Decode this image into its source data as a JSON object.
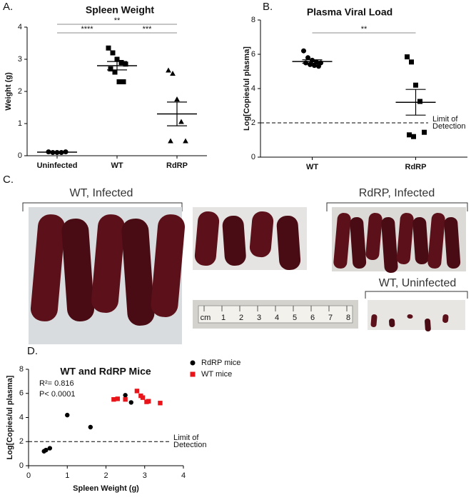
{
  "chart_data": [
    {
      "type": "dot",
      "panel_label": "A.",
      "title": "Spleen Weight",
      "y_label": "Weight (g)",
      "ylim": [
        0,
        4
      ],
      "yticks": [
        0,
        1,
        2,
        3,
        4
      ],
      "groups": [
        {
          "name": "Uninfected",
          "marker": "circle",
          "values": [
            0.12,
            0.1,
            0.1,
            0.1,
            0.12
          ],
          "mean": 0.11,
          "error": 0.01
        },
        {
          "name": "WT",
          "marker": "square",
          "values": [
            3.35,
            3.2,
            3.0,
            2.9,
            2.85,
            2.7,
            2.6,
            2.3,
            2.3
          ],
          "mean": 2.8,
          "error": 0.13
        },
        {
          "name": "RdRP",
          "marker": "triangle",
          "values": [
            2.65,
            2.55,
            1.75,
            1.05,
            0.45,
            0.45
          ],
          "mean": 1.3,
          "error": 0.37
        }
      ],
      "significance": [
        {
          "between": [
            0,
            2
          ],
          "label": "**"
        },
        {
          "between": [
            0,
            1
          ],
          "label": "****"
        },
        {
          "between": [
            1,
            2
          ],
          "label": "***"
        }
      ]
    },
    {
      "type": "dot",
      "panel_label": "B.",
      "title": "Plasma Viral Load",
      "y_label": "Log[Copies/ul plasma]",
      "ylim": [
        0,
        8
      ],
      "yticks": [
        0,
        2,
        4,
        6,
        8
      ],
      "groups": [
        {
          "name": "WT",
          "marker": "circle",
          "values": [
            6.2,
            5.8,
            5.65,
            5.55,
            5.5,
            5.5,
            5.4,
            5.35,
            5.3
          ],
          "mean": 5.58,
          "error": 0.1
        },
        {
          "name": "RdRP",
          "marker": "square",
          "values": [
            5.85,
            5.55,
            4.2,
            3.25,
            1.45,
            1.3,
            1.2
          ],
          "mean": 3.2,
          "error": 0.75
        }
      ],
      "reference_line": {
        "value": 2,
        "label_lines": [
          "Limit of",
          "Detection"
        ]
      },
      "significance": [
        {
          "between": [
            0,
            1
          ],
          "label": "**"
        }
      ]
    },
    {
      "type": "scatter",
      "panel_label": "D.",
      "title": "WT and RdRP Mice",
      "x_label": "Spleen Weight (g)",
      "y_label": "Log[Copies/ul plasma]",
      "xlim": [
        0,
        4
      ],
      "xticks": [
        0,
        1,
        2,
        3,
        4
      ],
      "ylim": [
        0,
        8
      ],
      "yticks": [
        0,
        2,
        4,
        6,
        8
      ],
      "series": [
        {
          "name": "RdRP mice",
          "color": "#000000",
          "marker": "circle",
          "x": [
            0.4,
            0.45,
            0.55,
            1.0,
            1.6,
            2.5,
            2.65
          ],
          "values": [
            1.2,
            1.3,
            1.45,
            4.2,
            3.2,
            5.85,
            5.25
          ]
        },
        {
          "name": "WT mice",
          "color": "#e8141a",
          "marker": "square",
          "x": [
            2.2,
            2.3,
            2.5,
            2.8,
            2.9,
            2.95,
            3.05,
            3.1,
            3.4
          ],
          "values": [
            5.5,
            5.55,
            5.5,
            6.2,
            5.8,
            5.65,
            5.3,
            5.35,
            5.2
          ]
        }
      ],
      "stats": [
        "R²= 0.816",
        "P< 0.0001"
      ],
      "reference_line": {
        "value": 2,
        "label_lines": [
          "Limit of",
          "Detection"
        ]
      }
    }
  ],
  "photo_panel": {
    "panel_label": "C.",
    "groups": [
      "WT, Infected",
      "RdRP, Infected",
      "WT, Uninfected"
    ],
    "ruler_labels": [
      "cm",
      "1",
      "2",
      "3",
      "4",
      "5",
      "6",
      "7",
      "8"
    ]
  }
}
